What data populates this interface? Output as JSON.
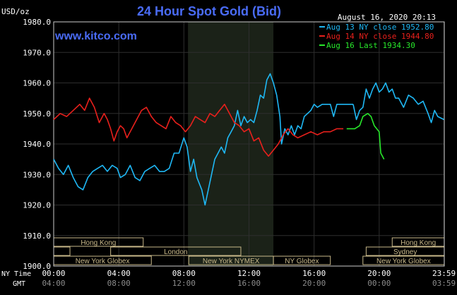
{
  "chart_data": {
    "type": "line",
    "title": "24 Hour Spot Gold (Bid)",
    "source_url": "www.kitco.com",
    "date_label": "August 16, 2020 20:13",
    "ylabel": "USD/oz",
    "ylim": [
      1900,
      1980
    ],
    "y_ticks": [
      "1980.0",
      "1970.0",
      "1960.0",
      "1950.0",
      "1940.0",
      "1930.0",
      "1920.0",
      "1910.0",
      "1900.0"
    ],
    "xlim": [
      0,
      24
    ],
    "x_tick_values": [
      0,
      4,
      8,
      12,
      16,
      20,
      23.98
    ],
    "ny_time_label": "NY Time",
    "gmt_label": "GMT",
    "ny_time_ticks": [
      "00:00",
      "04:00",
      "08:00",
      "12:00",
      "16:00",
      "20:00",
      "23:59"
    ],
    "gmt_ticks": [
      "04:00",
      "08:00",
      "12:00",
      "16:00",
      "20:00",
      "00:00",
      "03:59"
    ],
    "grid": true,
    "legend_position": "top-right",
    "shaded_region": [
      8.25,
      13.5
    ],
    "colors": {
      "background": "#000000",
      "title": "#4a6cf7",
      "url": "#4a6cf7",
      "session_box": "#c9b98a",
      "shade": "#1b2218",
      "grid": "#2e2e2e"
    },
    "sessions": [
      {
        "label": "Hong Kong",
        "start": 0,
        "end": 5.5,
        "row": 0
      },
      {
        "label": "Hong Kong",
        "start": 20.8,
        "end": 24,
        "row": 0
      },
      {
        "label": "",
        "start": 0,
        "end": 1,
        "row": 1
      },
      {
        "label": "London",
        "start": 3.5,
        "end": 11.5,
        "row": 1
      },
      {
        "label": "Sydney",
        "start": 19.2,
        "end": 24,
        "row": 1
      },
      {
        "label": "New York Globex",
        "start": 0,
        "end": 6,
        "row": 2
      },
      {
        "label": "New York NYMEX",
        "start": 8.3,
        "end": 13.5,
        "row": 2
      },
      {
        "label": "NY Globex",
        "start": 13.5,
        "end": 17,
        "row": 2
      },
      {
        "label": "New York Globex",
        "start": 19,
        "end": 24,
        "row": 2
      }
    ],
    "series": [
      {
        "name": "Aug 13 NY close 1952.80",
        "color": "#1fb8f5",
        "points": [
          [
            0,
            1935
          ],
          [
            0.3,
            1932
          ],
          [
            0.6,
            1930
          ],
          [
            0.9,
            1933
          ],
          [
            1.2,
            1929
          ],
          [
            1.5,
            1926
          ],
          [
            1.8,
            1925
          ],
          [
            2.1,
            1929
          ],
          [
            2.4,
            1931
          ],
          [
            2.7,
            1932
          ],
          [
            3.0,
            1933
          ],
          [
            3.3,
            1931
          ],
          [
            3.6,
            1933
          ],
          [
            3.9,
            1932
          ],
          [
            4.1,
            1929
          ],
          [
            4.4,
            1930
          ],
          [
            4.7,
            1933
          ],
          [
            5.0,
            1929
          ],
          [
            5.3,
            1928
          ],
          [
            5.6,
            1931
          ],
          [
            5.9,
            1932
          ],
          [
            6.2,
            1933
          ],
          [
            6.5,
            1931
          ],
          [
            6.8,
            1931
          ],
          [
            7.1,
            1932
          ],
          [
            7.4,
            1937
          ],
          [
            7.7,
            1937
          ],
          [
            8.0,
            1942
          ],
          [
            8.2,
            1939
          ],
          [
            8.4,
            1931
          ],
          [
            8.6,
            1935
          ],
          [
            8.8,
            1929
          ],
          [
            9.1,
            1925
          ],
          [
            9.3,
            1920
          ],
          [
            9.5,
            1925
          ],
          [
            9.7,
            1930
          ],
          [
            9.9,
            1935
          ],
          [
            10.1,
            1937
          ],
          [
            10.3,
            1939
          ],
          [
            10.5,
            1937
          ],
          [
            10.7,
            1942
          ],
          [
            10.9,
            1944
          ],
          [
            11.1,
            1946
          ],
          [
            11.3,
            1951
          ],
          [
            11.5,
            1946
          ],
          [
            11.7,
            1949
          ],
          [
            11.9,
            1947
          ],
          [
            12.1,
            1948
          ],
          [
            12.3,
            1947
          ],
          [
            12.5,
            1951
          ],
          [
            12.7,
            1956
          ],
          [
            12.9,
            1955
          ],
          [
            13.1,
            1961
          ],
          [
            13.3,
            1963
          ],
          [
            13.5,
            1960
          ],
          [
            13.7,
            1956
          ],
          [
            13.9,
            1949
          ],
          [
            14.0,
            1940
          ],
          [
            14.2,
            1945
          ],
          [
            14.4,
            1943
          ],
          [
            14.6,
            1946
          ],
          [
            14.8,
            1943
          ],
          [
            15.0,
            1946
          ],
          [
            15.2,
            1945
          ],
          [
            15.4,
            1949
          ],
          [
            15.6,
            1950
          ],
          [
            15.8,
            1951
          ],
          [
            16.0,
            1953
          ],
          [
            16.2,
            1952
          ],
          [
            16.5,
            1953
          ],
          [
            17.0,
            1953
          ],
          [
            17.2,
            1949
          ],
          [
            17.4,
            1953
          ],
          [
            17.6,
            1953
          ],
          [
            18.0,
            1953
          ],
          [
            18.4,
            1953
          ]
        ]
      },
      {
        "name": "Aug 14 NY close 1944.80",
        "color": "#e8201c",
        "points": [
          [
            0,
            1948
          ],
          [
            0.4,
            1950
          ],
          [
            0.8,
            1949
          ],
          [
            1.2,
            1951
          ],
          [
            1.6,
            1953
          ],
          [
            1.9,
            1951
          ],
          [
            2.2,
            1955
          ],
          [
            2.5,
            1952
          ],
          [
            2.8,
            1947
          ],
          [
            3.1,
            1950
          ],
          [
            3.3,
            1948
          ],
          [
            3.5,
            1945
          ],
          [
            3.7,
            1941
          ],
          [
            3.9,
            1944
          ],
          [
            4.1,
            1946
          ],
          [
            4.3,
            1945
          ],
          [
            4.5,
            1942
          ],
          [
            4.8,
            1945
          ],
          [
            5.1,
            1948
          ],
          [
            5.4,
            1951
          ],
          [
            5.7,
            1952
          ],
          [
            6.0,
            1949
          ],
          [
            6.3,
            1947
          ],
          [
            6.6,
            1946
          ],
          [
            6.9,
            1945
          ],
          [
            7.2,
            1949
          ],
          [
            7.5,
            1947
          ],
          [
            7.8,
            1946
          ],
          [
            8.1,
            1944
          ],
          [
            8.4,
            1946
          ],
          [
            8.7,
            1949
          ],
          [
            9.0,
            1948
          ],
          [
            9.3,
            1947
          ],
          [
            9.6,
            1950
          ],
          [
            9.9,
            1949
          ],
          [
            10.2,
            1951
          ],
          [
            10.5,
            1953
          ],
          [
            10.8,
            1950
          ],
          [
            11.1,
            1947
          ],
          [
            11.4,
            1946
          ],
          [
            11.7,
            1944
          ],
          [
            12.0,
            1945
          ],
          [
            12.3,
            1941
          ],
          [
            12.6,
            1942
          ],
          [
            12.9,
            1938
          ],
          [
            13.2,
            1936
          ],
          [
            13.5,
            1938
          ],
          [
            13.8,
            1940
          ],
          [
            14.1,
            1943
          ],
          [
            14.4,
            1945
          ],
          [
            14.7,
            1943
          ],
          [
            15.0,
            1942
          ],
          [
            15.4,
            1943
          ],
          [
            15.8,
            1944
          ],
          [
            16.2,
            1943
          ],
          [
            16.6,
            1944
          ],
          [
            17.0,
            1944
          ],
          [
            17.4,
            1945
          ],
          [
            17.8,
            1945
          ]
        ]
      },
      {
        "name": "Aug 16 Last 1934.30",
        "color": "#28e82b",
        "points": [
          [
            18.0,
            1945
          ],
          [
            18.5,
            1945
          ],
          [
            18.8,
            1946
          ],
          [
            19.0,
            1949
          ],
          [
            19.3,
            1950
          ],
          [
            19.5,
            1949
          ],
          [
            19.7,
            1946
          ],
          [
            20.0,
            1944
          ],
          [
            20.1,
            1937
          ],
          [
            20.2,
            1936
          ],
          [
            20.3,
            1935
          ]
        ]
      },
      {
        "name": "",
        "color": "#1fb8f5",
        "points": [
          [
            18.4,
            1953
          ],
          [
            18.6,
            1948
          ],
          [
            18.8,
            1951
          ],
          [
            19.0,
            1952
          ],
          [
            19.2,
            1958
          ],
          [
            19.4,
            1955
          ],
          [
            19.6,
            1958
          ],
          [
            19.8,
            1960
          ],
          [
            20.0,
            1957
          ],
          [
            20.2,
            1958
          ],
          [
            20.4,
            1960
          ],
          [
            20.6,
            1957
          ],
          [
            20.8,
            1958
          ],
          [
            21.0,
            1955
          ],
          [
            21.2,
            1955
          ],
          [
            21.5,
            1952
          ],
          [
            21.8,
            1956
          ],
          [
            22.1,
            1955
          ],
          [
            22.4,
            1953
          ],
          [
            22.7,
            1954
          ],
          [
            23.0,
            1950
          ],
          [
            23.2,
            1947
          ],
          [
            23.4,
            1951
          ],
          [
            23.6,
            1949
          ],
          [
            23.98,
            1948
          ]
        ]
      }
    ]
  }
}
